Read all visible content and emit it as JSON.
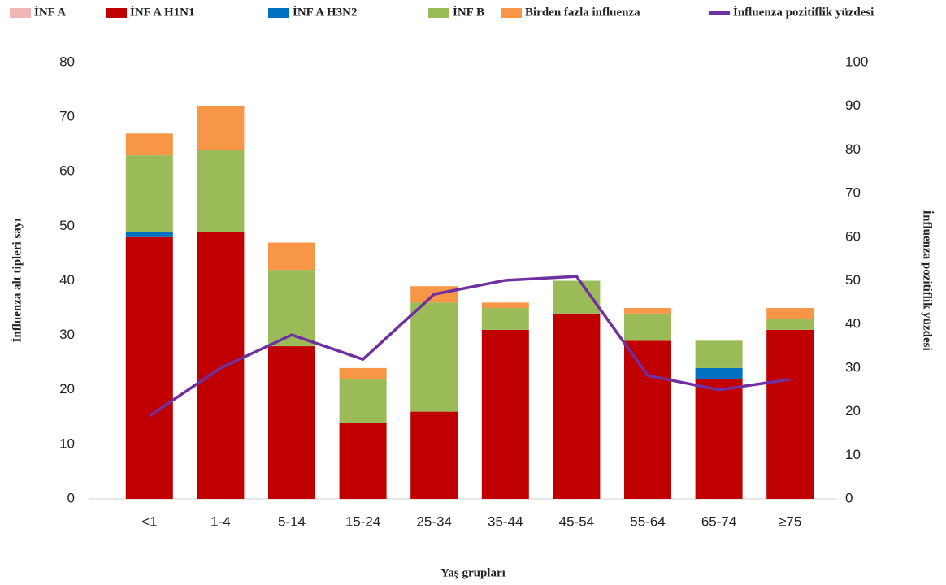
{
  "chart_data": {
    "type": "bar",
    "stacked": true,
    "xlabel": "Yaş grupları",
    "ylabel": "İnfluenza alt tipleri sayı",
    "y2label": "İnfluenza pozitiflik yüzdesi",
    "categories": [
      "<1",
      "1-4",
      "5-14",
      "15-24",
      "25-34",
      "35-44",
      "45-54",
      "55-64",
      "65-74",
      "≥75"
    ],
    "ylim": [
      0,
      80
    ],
    "yticks": [
      0,
      10,
      20,
      30,
      40,
      50,
      60,
      70,
      80
    ],
    "y2lim": [
      0,
      100
    ],
    "y2ticks": [
      0,
      10,
      20,
      30,
      40,
      50,
      60,
      70,
      80,
      90,
      100
    ],
    "grid": false,
    "legend": "top",
    "series": [
      {
        "name": "İNF A",
        "color": "#f2b8b8",
        "values": [
          0,
          0,
          0,
          0,
          0,
          0,
          0,
          0,
          0,
          0
        ]
      },
      {
        "name": "İNF A H1N1",
        "color": "#c00000",
        "values": [
          48,
          49,
          28,
          14,
          16,
          31,
          34,
          29,
          22,
          31
        ]
      },
      {
        "name": "İNF A H3N2",
        "color": "#0070c0",
        "values": [
          1,
          0,
          0,
          0,
          0,
          0,
          0,
          0,
          2,
          0
        ]
      },
      {
        "name": "İNF B",
        "color": "#9bbb59",
        "values": [
          14,
          15,
          14,
          8,
          20,
          4,
          6,
          5,
          5,
          2
        ]
      },
      {
        "name": "Birden fazla influenza",
        "color": "#f79646",
        "values": [
          4,
          8,
          5,
          2,
          3,
          1,
          0,
          1,
          0,
          2
        ]
      },
      {
        "name": "İnfluenza pozitiflik yüzdesi",
        "type": "line",
        "axis": "y2",
        "color": "#7030a0",
        "values": [
          19,
          30,
          37.6,
          32,
          46.9,
          50.1,
          51,
          28.3,
          25,
          27.4
        ]
      }
    ]
  }
}
